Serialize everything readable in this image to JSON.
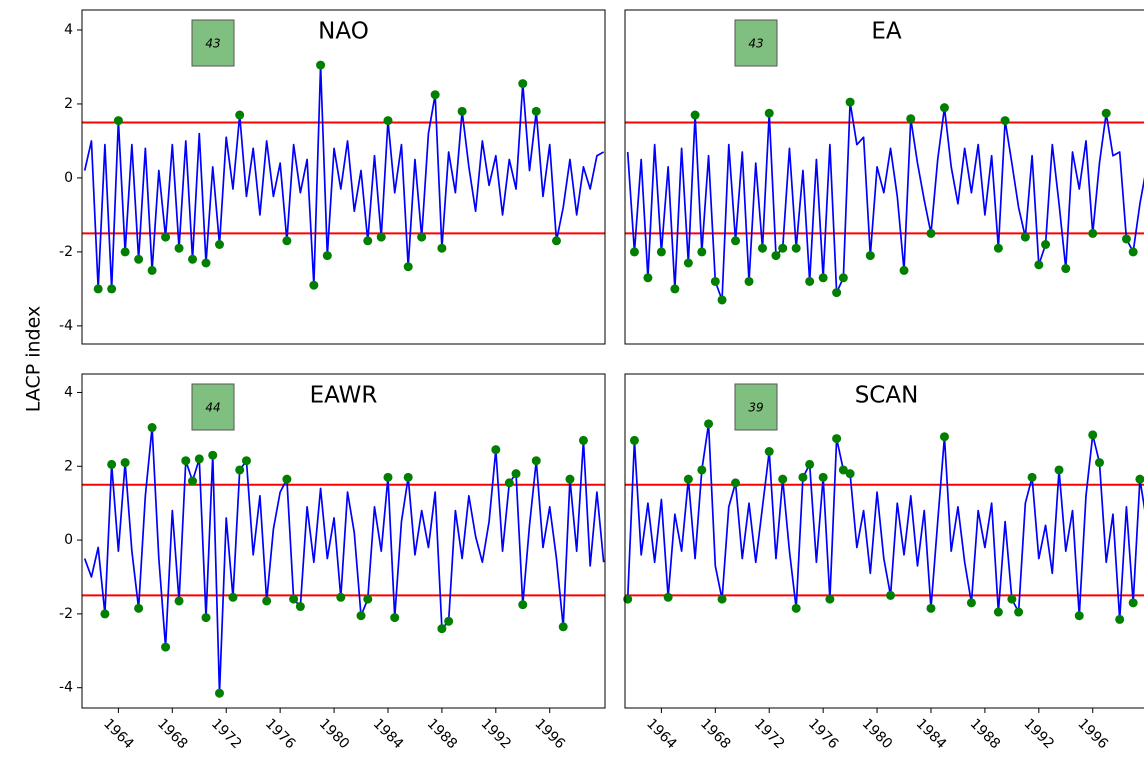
{
  "ylabel": "LACP index",
  "chart_data": [
    {
      "type": "line",
      "title": "NAO",
      "count": "43",
      "color": "#0000ff",
      "marker_color": "#007f00",
      "threshold_color": "#ff0000",
      "threshold_lines": [
        1.5,
        -1.5
      ],
      "xlim": [
        1961.3,
        2000.1
      ],
      "ylim": [
        -4.49,
        4.54
      ],
      "yticks": [
        -4,
        -2,
        0,
        2,
        4
      ],
      "x": [
        1961.5,
        1962,
        1962.5,
        1963,
        1963.5,
        1964,
        1964.5,
        1965,
        1965.5,
        1966,
        1966.5,
        1967,
        1967.5,
        1968,
        1968.5,
        1969,
        1969.5,
        1970,
        1970.5,
        1971,
        1971.5,
        1972,
        1972.5,
        1973,
        1973.5,
        1974,
        1974.5,
        1975,
        1975.5,
        1976,
        1976.5,
        1977,
        1977.5,
        1978,
        1978.5,
        1979,
        1979.5,
        1980,
        1980.5,
        1981,
        1981.5,
        1982,
        1982.5,
        1983,
        1983.5,
        1984,
        1984.5,
        1985,
        1985.5,
        1986,
        1986.5,
        1987,
        1987.5,
        1988,
        1988.5,
        1989,
        1989.5,
        1990,
        1990.5,
        1991,
        1991.5,
        1992,
        1992.5,
        1993,
        1993.5,
        1994,
        1994.5,
        1995,
        1995.5,
        1996,
        1996.5,
        1997,
        1997.5,
        1998,
        1998.5,
        1999,
        1999.5,
        2000
      ],
      "values": [
        0.2,
        1.0,
        -3.0,
        0.9,
        -3.0,
        1.55,
        -2.0,
        0.9,
        -2.2,
        0.8,
        -2.5,
        0.2,
        -1.6,
        0.9,
        -1.9,
        1.0,
        -2.2,
        1.2,
        -2.3,
        0.3,
        -1.8,
        1.1,
        -0.3,
        1.7,
        -0.5,
        0.8,
        -1.0,
        1.0,
        -0.5,
        0.4,
        -1.7,
        0.9,
        -0.4,
        0.5,
        -2.9,
        3.05,
        -2.1,
        0.8,
        -0.3,
        1.0,
        -0.9,
        0.2,
        -1.7,
        0.6,
        -1.6,
        1.55,
        -0.4,
        0.9,
        -2.4,
        0.5,
        -1.6,
        1.2,
        2.25,
        -1.9,
        0.7,
        -0.4,
        1.8,
        0.3,
        -0.9,
        1.0,
        -0.2,
        0.6,
        -1.0,
        0.5,
        -0.3,
        2.55,
        0.2,
        1.8,
        -0.5,
        0.9,
        -1.7,
        -0.8,
        0.5,
        -1.0,
        0.3,
        -0.3,
        0.6,
        0.7
      ]
    },
    {
      "type": "line",
      "title": "EA",
      "count": "43",
      "color": "#0000ff",
      "marker_color": "#007f00",
      "threshold_color": "#ff0000",
      "threshold_lines": [
        1.5,
        -1.5
      ],
      "xlim": [
        1961.3,
        2000.1
      ],
      "ylim": [
        -4.49,
        4.54
      ],
      "x": [
        1961.5,
        1962,
        1962.5,
        1963,
        1963.5,
        1964,
        1964.5,
        1965,
        1965.5,
        1966,
        1966.5,
        1967,
        1967.5,
        1968,
        1968.5,
        1969,
        1969.5,
        1970,
        1970.5,
        1971,
        1971.5,
        1972,
        1972.5,
        1973,
        1973.5,
        1974,
        1974.5,
        1975,
        1975.5,
        1976,
        1976.5,
        1977,
        1977.5,
        1978,
        1978.5,
        1979,
        1979.5,
        1980,
        1980.5,
        1981,
        1981.5,
        1982,
        1982.5,
        1983,
        1983.5,
        1984,
        1984.5,
        1985,
        1985.5,
        1986,
        1986.5,
        1987,
        1987.5,
        1988,
        1988.5,
        1989,
        1989.5,
        1990,
        1990.5,
        1991,
        1991.5,
        1992,
        1992.5,
        1993,
        1993.5,
        1994,
        1994.5,
        1995,
        1995.5,
        1996,
        1996.5,
        1997,
        1997.5,
        1998,
        1998.5,
        1999,
        1999.5,
        2000
      ],
      "values": [
        0.7,
        -2.0,
        0.5,
        -2.7,
        0.9,
        -2.0,
        0.3,
        -3.0,
        0.8,
        -2.3,
        1.7,
        -2.0,
        0.6,
        -2.8,
        -3.3,
        0.9,
        -1.7,
        0.7,
        -2.8,
        0.4,
        -1.9,
        1.75,
        -2.1,
        -1.9,
        0.8,
        -1.9,
        0.2,
        -2.8,
        0.5,
        -2.7,
        0.9,
        -3.1,
        -2.7,
        2.05,
        0.9,
        1.1,
        -2.1,
        0.3,
        -0.4,
        0.8,
        -0.5,
        -2.5,
        1.6,
        0.4,
        -0.6,
        -1.5,
        0.5,
        1.9,
        0.3,
        -0.7,
        0.8,
        -0.4,
        0.9,
        -1.0,
        0.6,
        -1.9,
        1.55,
        0.4,
        -0.8,
        -1.6,
        0.6,
        -2.35,
        -1.8,
        0.9,
        -0.7,
        -2.45,
        0.7,
        -0.3,
        1.0,
        -1.5,
        0.4,
        1.75,
        0.6,
        0.7,
        -1.65,
        -2.0,
        -0.7,
        0.3
      ]
    },
    {
      "type": "line",
      "title": "EAWR",
      "count": "44",
      "color": "#0000ff",
      "marker_color": "#007f00",
      "threshold_color": "#ff0000",
      "threshold_lines": [
        1.5,
        -1.5
      ],
      "xlim": [
        1961.3,
        2000.1
      ],
      "ylim": [
        -4.55,
        4.5
      ],
      "yticks": [
        -4,
        -2,
        0,
        2,
        4
      ],
      "xticks": [
        1964,
        1968,
        1972,
        1976,
        1980,
        1984,
        1988,
        1992,
        1996
      ],
      "x": [
        1961.5,
        1962,
        1962.5,
        1963,
        1963.5,
        1964,
        1964.5,
        1965,
        1965.5,
        1966,
        1966.5,
        1967,
        1967.5,
        1968,
        1968.5,
        1969,
        1969.5,
        1970,
        1970.5,
        1971,
        1971.5,
        1972,
        1972.5,
        1973,
        1973.5,
        1974,
        1974.5,
        1975,
        1975.5,
        1976,
        1976.5,
        1977,
        1977.5,
        1978,
        1978.5,
        1979,
        1979.5,
        1980,
        1980.5,
        1981,
        1981.5,
        1982,
        1982.5,
        1983,
        1983.5,
        1984,
        1984.5,
        1985,
        1985.5,
        1986,
        1986.5,
        1987,
        1987.5,
        1988,
        1988.5,
        1989,
        1989.5,
        1990,
        1990.5,
        1991,
        1991.5,
        1992,
        1992.5,
        1993,
        1993.5,
        1994,
        1994.5,
        1995,
        1995.5,
        1996,
        1996.5,
        1997,
        1997.5,
        1998,
        1998.5,
        1999,
        1999.5,
        2000
      ],
      "values": [
        -0.5,
        -1.0,
        -0.2,
        -2.0,
        2.05,
        -0.3,
        2.1,
        -0.3,
        -1.85,
        1.2,
        3.05,
        -0.5,
        -2.9,
        0.8,
        -1.65,
        2.15,
        1.6,
        2.2,
        -2.1,
        2.3,
        -4.15,
        0.6,
        -1.55,
        1.9,
        2.15,
        -0.4,
        1.2,
        -1.65,
        0.3,
        1.3,
        1.65,
        -1.6,
        -1.8,
        0.9,
        -0.6,
        1.4,
        -0.5,
        0.6,
        -1.55,
        1.3,
        0.2,
        -2.05,
        -1.6,
        0.9,
        -0.3,
        1.7,
        -2.1,
        0.5,
        1.7,
        -0.4,
        0.8,
        -0.2,
        1.3,
        -2.4,
        -2.2,
        0.8,
        -0.5,
        1.2,
        0.1,
        -0.6,
        0.5,
        2.45,
        -0.3,
        1.55,
        1.8,
        -1.75,
        0.4,
        2.15,
        -0.2,
        0.9,
        -0.5,
        -2.35,
        1.65,
        -0.3,
        2.7,
        -0.7,
        1.3,
        -0.6
      ]
    },
    {
      "type": "line",
      "title": "SCAN",
      "count": "39",
      "color": "#0000ff",
      "marker_color": "#007f00",
      "threshold_color": "#ff0000",
      "threshold_lines": [
        1.5,
        -1.5
      ],
      "xlim": [
        1961.3,
        2000.1
      ],
      "ylim": [
        -4.55,
        4.5
      ],
      "xticks": [
        1964,
        1968,
        1972,
        1976,
        1980,
        1984,
        1988,
        1992,
        1996
      ],
      "x": [
        1961.5,
        1962,
        1962.5,
        1963,
        1963.5,
        1964,
        1964.5,
        1965,
        1965.5,
        1966,
        1966.5,
        1967,
        1967.5,
        1968,
        1968.5,
        1969,
        1969.5,
        1970,
        1970.5,
        1971,
        1971.5,
        1972,
        1972.5,
        1973,
        1973.5,
        1974,
        1974.5,
        1975,
        1975.5,
        1976,
        1976.5,
        1977,
        1977.5,
        1978,
        1978.5,
        1979,
        1979.5,
        1980,
        1980.5,
        1981,
        1981.5,
        1982,
        1982.5,
        1983,
        1983.5,
        1984,
        1984.5,
        1985,
        1985.5,
        1986,
        1986.5,
        1987,
        1987.5,
        1988,
        1988.5,
        1989,
        1989.5,
        1990,
        1990.5,
        1991,
        1991.5,
        1992,
        1992.5,
        1993,
        1993.5,
        1994,
        1994.5,
        1995,
        1995.5,
        1996,
        1996.5,
        1997,
        1997.5,
        1998,
        1998.5,
        1999,
        1999.5,
        2000
      ],
      "values": [
        -1.6,
        2.7,
        -0.4,
        1.0,
        -0.6,
        1.1,
        -1.55,
        0.7,
        -0.3,
        1.65,
        -0.5,
        1.9,
        3.15,
        -0.7,
        -1.6,
        0.9,
        1.55,
        -0.5,
        1.0,
        -0.6,
        0.9,
        2.4,
        -0.5,
        1.65,
        -0.3,
        -1.85,
        1.7,
        2.05,
        -0.6,
        1.7,
        -1.6,
        2.75,
        1.9,
        1.8,
        -0.2,
        0.8,
        -0.9,
        1.3,
        -0.5,
        -1.5,
        1.0,
        -0.4,
        1.2,
        -0.7,
        0.8,
        -1.85,
        0.5,
        2.8,
        -0.3,
        0.9,
        -0.6,
        -1.7,
        0.8,
        -0.2,
        1.0,
        -1.95,
        0.5,
        -1.6,
        -1.95,
        1.0,
        1.7,
        -0.5,
        0.4,
        -0.9,
        1.9,
        -0.3,
        0.8,
        -2.05,
        1.2,
        2.85,
        2.1,
        -0.6,
        0.7,
        -2.15,
        0.9,
        -1.7,
        1.65,
        0.5
      ]
    }
  ]
}
